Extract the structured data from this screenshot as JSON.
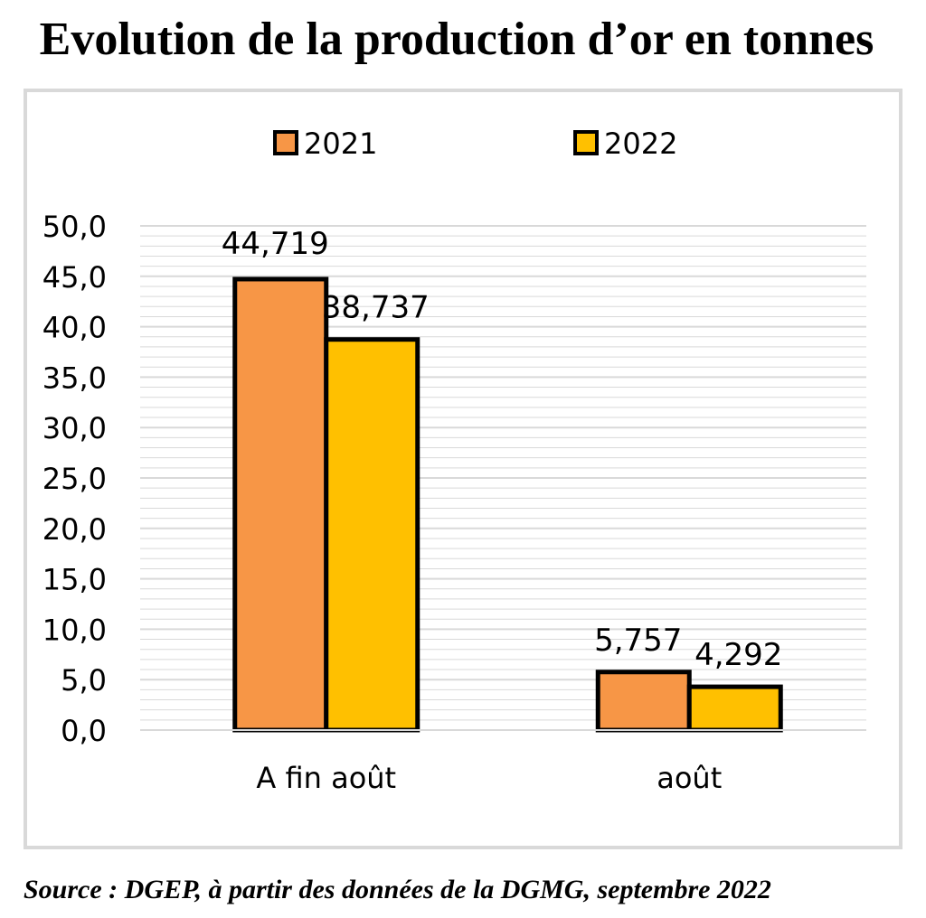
{
  "title": "Evolution de la production d’or en tonnes",
  "source": "Source : DGEP, à partir des données de la DGMG, septembre 2022",
  "colors": {
    "series_2021": "#f79646",
    "series_2022": "#ffc000",
    "gridline": "#d9d9d9",
    "frame": "#d9d9d9",
    "bar_stroke": "#000000"
  },
  "chart_data": {
    "type": "bar",
    "title": "Evolution de la production d’or en tonnes",
    "xlabel": "",
    "ylabel": "",
    "categories": [
      "A fin août",
      "août"
    ],
    "series": [
      {
        "name": "2021",
        "values": [
          44.719,
          5.757
        ],
        "labels": [
          "44,719",
          "5,757"
        ]
      },
      {
        "name": "2022",
        "values": [
          38.737,
          4.292
        ],
        "labels": [
          "38,737",
          "4,292"
        ]
      }
    ],
    "ylim": [
      0,
      50
    ],
    "yticks": [
      "0,0",
      "5,0",
      "10,0",
      "15,0",
      "20,0",
      "25,0",
      "30,0",
      "35,0",
      "40,0",
      "45,0",
      "50,0"
    ],
    "grid": true,
    "legend": "top-center"
  }
}
